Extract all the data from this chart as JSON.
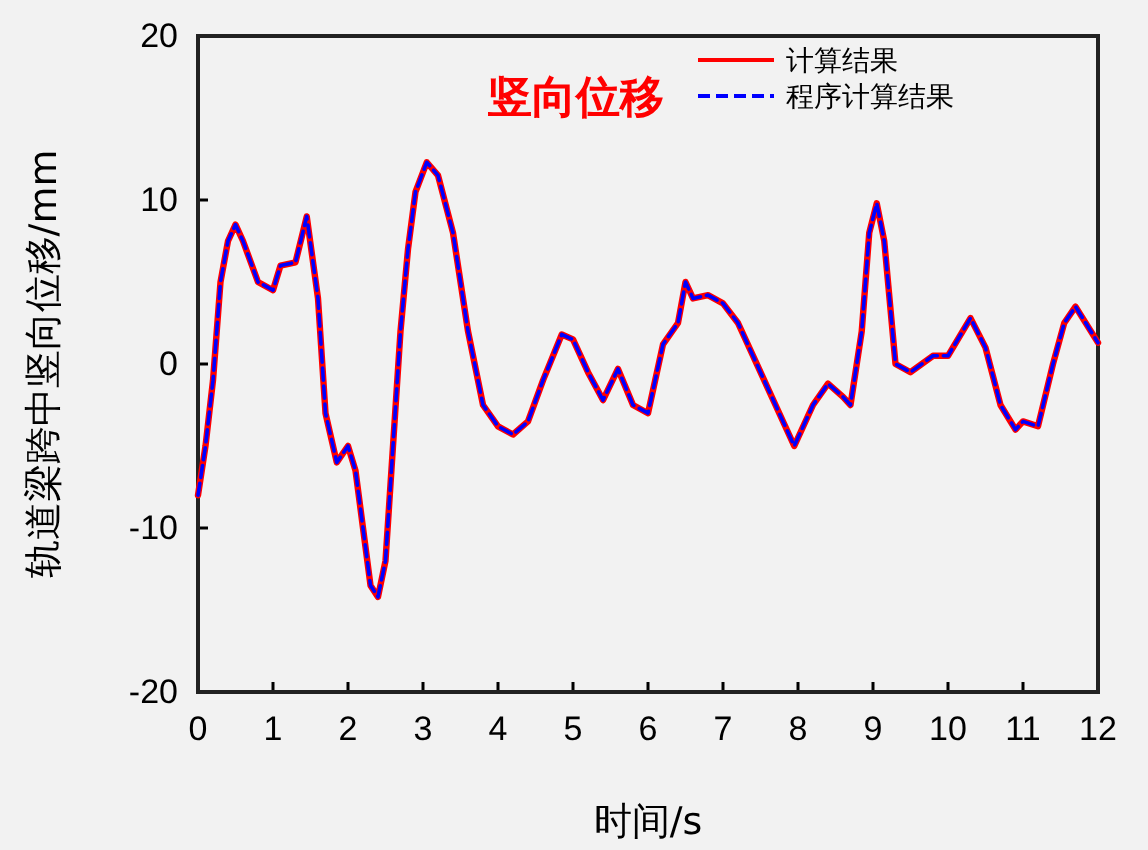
{
  "chart_data": {
    "type": "line",
    "title": "竖向位移",
    "xlabel": "时间/s",
    "ylabel": "轨道梁跨中竖向位移/mm",
    "x": [
      0,
      0.1,
      0.2,
      0.3,
      0.4,
      0.5,
      0.6,
      0.8,
      1.0,
      1.1,
      1.3,
      1.45,
      1.6,
      1.7,
      1.85,
      2.0,
      2.1,
      2.2,
      2.3,
      2.4,
      2.5,
      2.6,
      2.7,
      2.8,
      2.9,
      3.05,
      3.2,
      3.4,
      3.6,
      3.8,
      4.0,
      4.2,
      4.4,
      4.6,
      4.85,
      5.0,
      5.2,
      5.4,
      5.6,
      5.8,
      6.0,
      6.2,
      6.4,
      6.5,
      6.6,
      6.8,
      7.0,
      7.2,
      7.5,
      7.7,
      7.95,
      8.2,
      8.4,
      8.6,
      8.7,
      8.85,
      8.95,
      9.05,
      9.15,
      9.3,
      9.5,
      9.8,
      10.0,
      10.3,
      10.5,
      10.7,
      10.9,
      11.0,
      11.2,
      11.4,
      11.55,
      11.7,
      12.0
    ],
    "series": [
      {
        "name": "计算结果",
        "color": "#ff0000",
        "line_style": "solid",
        "values": [
          -8,
          -5,
          -1,
          5,
          7.5,
          8.5,
          7.5,
          5,
          4.5,
          6,
          6.2,
          9,
          4,
          -3,
          -6,
          -5,
          -6.5,
          -10,
          -13.5,
          -14.2,
          -12,
          -5,
          2,
          7,
          10.5,
          12.3,
          11.5,
          8,
          2,
          -2.5,
          -3.8,
          -4.3,
          -3.5,
          -1,
          1.8,
          1.5,
          -0.5,
          -2.2,
          -0.3,
          -2.5,
          -3,
          1.2,
          2.5,
          5,
          4,
          4.2,
          3.7,
          2.5,
          -0.5,
          -2.5,
          -5,
          -2.5,
          -1.2,
          -2,
          -2.5,
          2,
          8,
          9.8,
          7.5,
          0,
          -0.5,
          0.5,
          0.5,
          2.8,
          1,
          -2.5,
          -4,
          -3.5,
          -3.8,
          0,
          2.5,
          3.5,
          1.3
        ]
      },
      {
        "name": "程序计算结果",
        "color": "#0000ff",
        "line_style": "dashed",
        "values": [
          -8,
          -5,
          -1,
          5,
          7.5,
          8.5,
          7.5,
          5,
          4.5,
          6,
          6.2,
          9,
          4,
          -3,
          -6,
          -5,
          -6.5,
          -10,
          -13.5,
          -14.2,
          -12,
          -5,
          2,
          7,
          10.5,
          12.3,
          11.5,
          8,
          2,
          -2.5,
          -3.8,
          -4.3,
          -3.5,
          -1,
          1.8,
          1.5,
          -0.5,
          -2.2,
          -0.3,
          -2.5,
          -3,
          1.2,
          2.5,
          5,
          4,
          4.2,
          3.7,
          2.5,
          -0.5,
          -2.5,
          -5,
          -2.5,
          -1.2,
          -2,
          -2.5,
          2,
          8,
          9.8,
          7.5,
          0,
          -0.5,
          0.5,
          0.5,
          2.8,
          1,
          -2.5,
          -4,
          -3.5,
          -3.8,
          0,
          2.5,
          3.5,
          1.3
        ]
      }
    ],
    "xlim": [
      0,
      12
    ],
    "xticks": [
      0,
      1,
      2,
      3,
      4,
      5,
      6,
      7,
      8,
      9,
      10,
      11,
      12
    ],
    "ylim": [
      -20,
      20
    ],
    "yticks": [
      -20,
      -10,
      0,
      10,
      20
    ],
    "grid": false,
    "legend": "top right",
    "marker": "none"
  }
}
